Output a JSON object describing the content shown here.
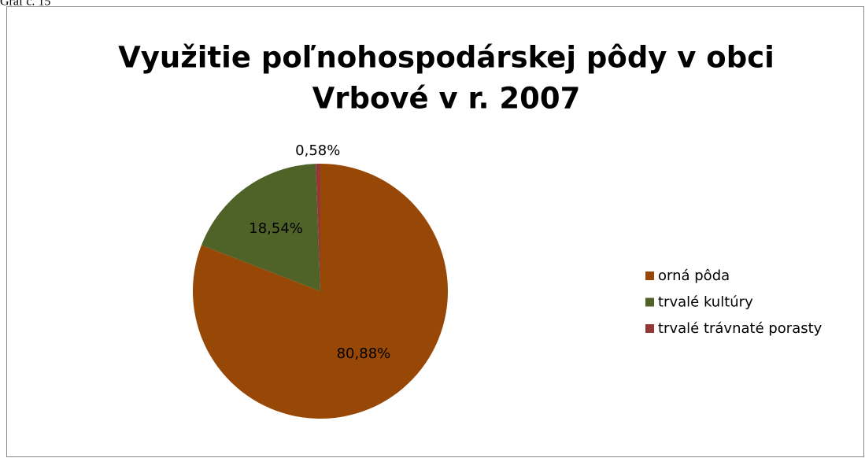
{
  "caption": "Graf č. 15",
  "chart_data": {
    "type": "pie",
    "title": [
      "Využitie poľnohospodárskej pôdy v obci",
      "Vrbové v r. 2007"
    ],
    "categories": [
      "orná pôda",
      "trvalé kultúry",
      "trvalé trávnaté porasty"
    ],
    "values": [
      80.88,
      18.54,
      0.58
    ],
    "value_labels": [
      "80,88%",
      "18,54%",
      "0,58%"
    ],
    "colors": [
      "#974706",
      "#4f6228",
      "#953735"
    ],
    "legend": "right"
  }
}
